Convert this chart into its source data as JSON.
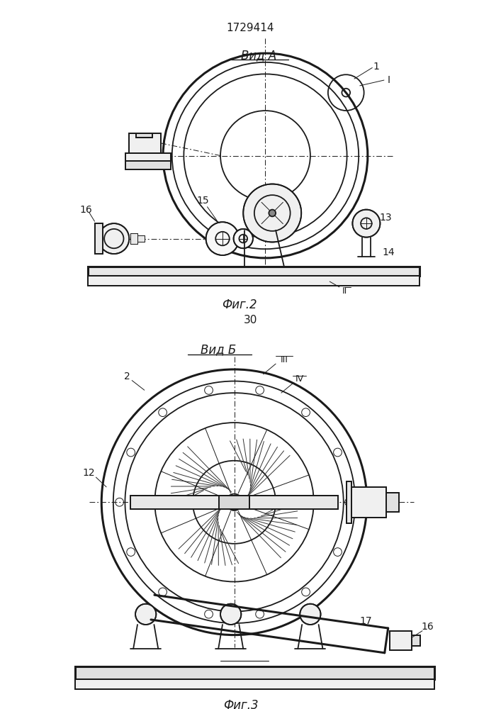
{
  "title": "1729414",
  "fig2_label": "Фиг.2",
  "fig3_label": "Фиг.3",
  "view_a_label": "Вид А",
  "view_b_label": "Вид Б",
  "page_num": "30",
  "bg_color": "#ffffff",
  "line_color": "#1a1a1a",
  "lw": 1.3,
  "tlw": 0.7,
  "thw": 2.2
}
